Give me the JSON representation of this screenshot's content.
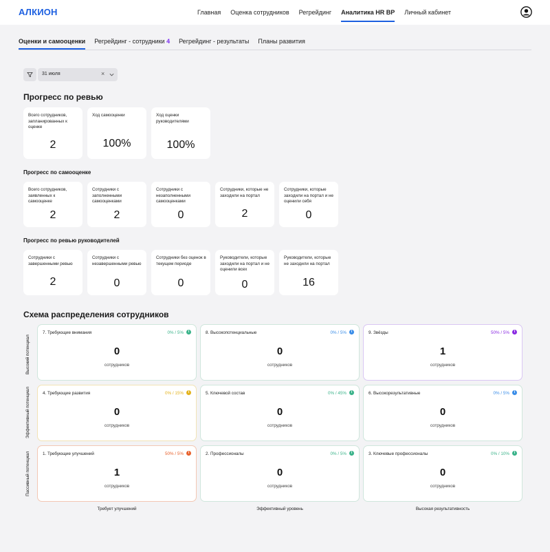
{
  "header": {
    "logo": "АЛКИОН",
    "nav": [
      "Главная",
      "Оценка сотрудников",
      "Регрейдинг",
      "Аналитика HR BP",
      "Личный кабинет"
    ]
  },
  "tabs": {
    "items": [
      "Оценки и самооценки",
      "Регрейдинг - сотрудники",
      "Регрейдинг - результаты",
      "Планы развития"
    ],
    "regrading_count": "4"
  },
  "filter": {
    "date": "31 июля"
  },
  "review_progress": {
    "title": "Прогресс по ревью",
    "cards": [
      {
        "label": "Всего сотрудников, запланированных к оценке",
        "value": "2"
      },
      {
        "label": "Ход самооценки",
        "value": "100%"
      },
      {
        "label": "Ход оценки руководителями",
        "value": "100%"
      }
    ]
  },
  "self_progress": {
    "title": "Прогресс по самооценке",
    "cards": [
      {
        "label": "Всего сотрудников, заявленных к самооценке",
        "value": "2"
      },
      {
        "label": "Сотрудники  с заполненными самооценками",
        "value": "2"
      },
      {
        "label": "Сотрудники  с незаполненными самооценками",
        "value": "0"
      },
      {
        "label": "Сотрудники, которые не заходили на портал",
        "value": "2"
      },
      {
        "label": "Сотрудники, которые заходили на портал и не оценили себя",
        "value": "0"
      }
    ]
  },
  "manager_progress": {
    "title": "Прогресс по ревью руководителей",
    "cards": [
      {
        "label": "Сотрудники с завершенными ревью",
        "value": "2"
      },
      {
        "label": "Сотрудники  с незавершенными ревью",
        "value": "0"
      },
      {
        "label": "Сотрудники без оценок в текущем периоде",
        "value": "0"
      },
      {
        "label": "Руководители, которые заходили на портал и не оценили всех",
        "value": "0"
      },
      {
        "label": "Руководители, которые не заходили на портал",
        "value": "16"
      }
    ]
  },
  "scheme": {
    "title": "Схема распределения сотрудников",
    "caption": "сотрудников",
    "rows": [
      "Высокий потенциал",
      "Эффективный потенциал",
      "Пассивный потенциал"
    ],
    "cols": [
      "Требует улучшений",
      "Эффективный уровень",
      "Высокая результативность"
    ],
    "cells": [
      {
        "title": "7. Требующие внимания",
        "pct": "0% / 5%",
        "value": "0",
        "color": "#3bb38a",
        "border": "#cfe6dc"
      },
      {
        "title": "8. Высокопотенциальные",
        "pct": "0% / 5%",
        "value": "0",
        "color": "#3a8de8",
        "border": "#cfe6dc"
      },
      {
        "title": "9. Звёзды",
        "pct": "50% / 5%",
        "value": "1",
        "color": "#8a2be2",
        "border": "#d9c6f3"
      },
      {
        "title": "4. Требующие развития",
        "pct": "0% / 15%",
        "value": "0",
        "color": "#e3b21b",
        "border": "#f2e3b5"
      },
      {
        "title": "5. Ключевой состав",
        "pct": "0% / 45%",
        "value": "0",
        "color": "#3bb38a",
        "border": "#cfe6dc"
      },
      {
        "title": "6. Высокорезультативные",
        "pct": "0% / 5%",
        "value": "0",
        "color": "#3a8de8",
        "border": "#cfe6dc"
      },
      {
        "title": "1. Требующие улучшений",
        "pct": "50% / 5%",
        "value": "1",
        "color": "#e8612c",
        "border": "#f3c7b3"
      },
      {
        "title": "2. Профессионалы",
        "pct": "0% / 5%",
        "value": "0",
        "color": "#3bb38a",
        "border": "#cfe6dc"
      },
      {
        "title": "3. Ключевые профессионалы",
        "pct": "0% / 10%",
        "value": "0",
        "color": "#3bb38a",
        "border": "#cfe6dc"
      }
    ]
  }
}
